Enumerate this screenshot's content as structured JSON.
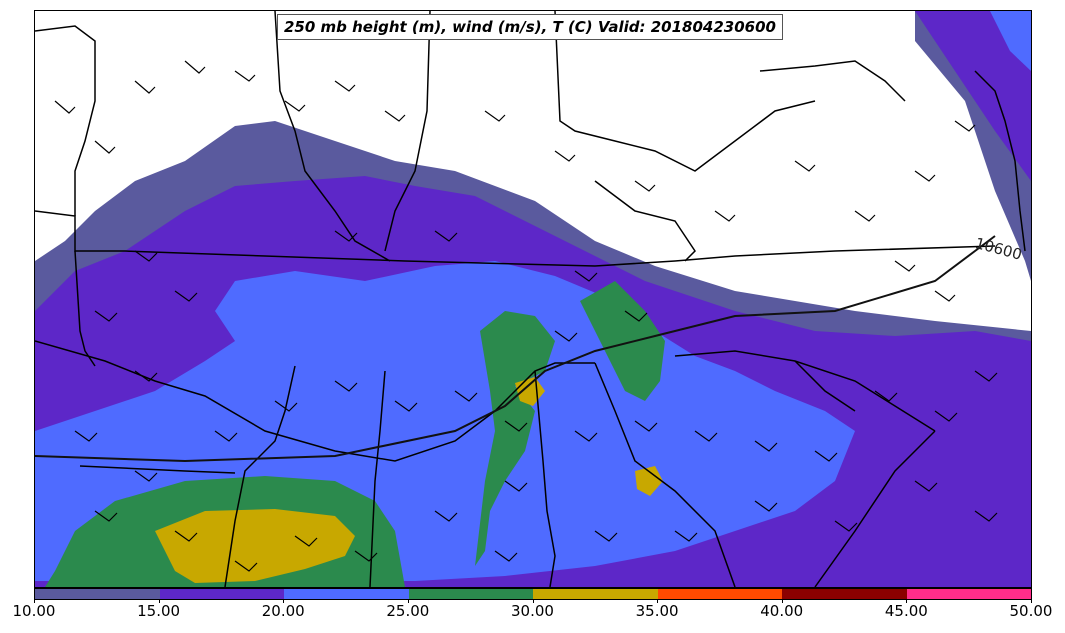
{
  "title": "250 mb height (m), wind (m/s), T (C) Valid: 201804230600",
  "contour_label": "10600",
  "colorbar": {
    "colors": [
      "#5a5a9e",
      "#5d27c8",
      "#4f6bff",
      "#2b8a4d",
      "#c8a800",
      "#ff4a00",
      "#8b0000",
      "#ff2d8a"
    ],
    "ticks": [
      "10.00",
      "15.00",
      "20.00",
      "25.00",
      "30.00",
      "35.00",
      "40.00",
      "45.00",
      "50.00"
    ]
  }
}
